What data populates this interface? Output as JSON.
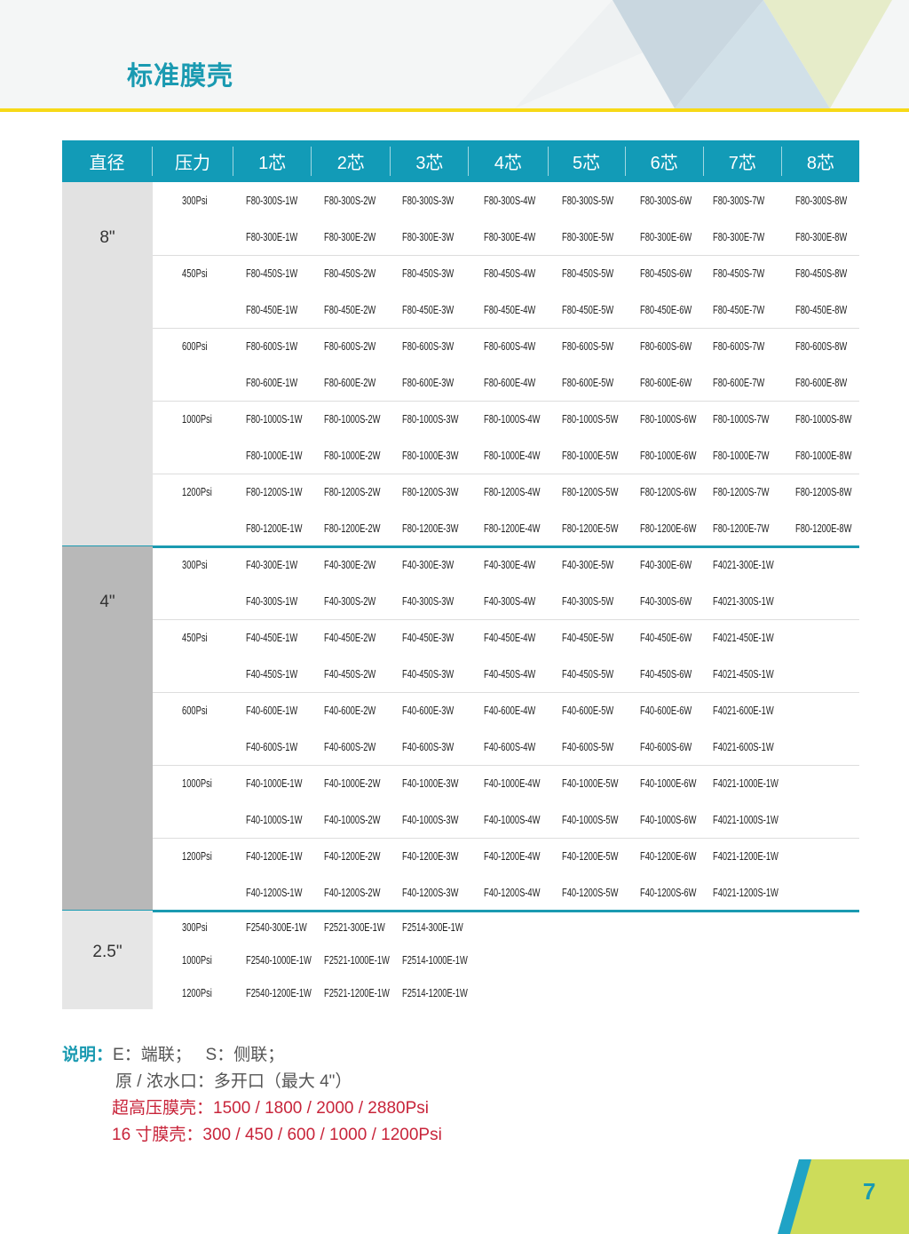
{
  "page_title": "标准膜壳",
  "colors": {
    "accent": "#129bb7",
    "yellow": "#f7d917",
    "red": "#c8243a",
    "lime": "#cddc5a"
  },
  "table": {
    "headers": [
      "直径",
      "压力",
      "1芯",
      "2芯",
      "3芯",
      "4芯",
      "5芯",
      "6芯",
      "7芯",
      "8芯"
    ],
    "blocks": [
      {
        "diameter": "8\"",
        "rows": [
          {
            "pressure": "300Psi",
            "cells": [
              "F80-300S-1W",
              "F80-300S-2W",
              "F80-300S-3W",
              "F80-300S-4W",
              "F80-300S-5W",
              "F80-300S-6W",
              "F80-300S-7W",
              "F80-300S-8W"
            ]
          },
          {
            "pressure": "",
            "cells": [
              "F80-300E-1W",
              "F80-300E-2W",
              "F80-300E-3W",
              "F80-300E-4W",
              "F80-300E-5W",
              "F80-300E-6W",
              "F80-300E-7W",
              "F80-300E-8W"
            ]
          },
          {
            "pressure": "450Psi",
            "cells": [
              "F80-450S-1W",
              "F80-450S-2W",
              "F80-450S-3W",
              "F80-450S-4W",
              "F80-450S-5W",
              "F80-450S-6W",
              "F80-450S-7W",
              "F80-450S-8W"
            ]
          },
          {
            "pressure": "",
            "cells": [
              "F80-450E-1W",
              "F80-450E-2W",
              "F80-450E-3W",
              "F80-450E-4W",
              "F80-450E-5W",
              "F80-450E-6W",
              "F80-450E-7W",
              "F80-450E-8W"
            ]
          },
          {
            "pressure": "600Psi",
            "cells": [
              "F80-600S-1W",
              "F80-600S-2W",
              "F80-600S-3W",
              "F80-600S-4W",
              "F80-600S-5W",
              "F80-600S-6W",
              "F80-600S-7W",
              "F80-600S-8W"
            ]
          },
          {
            "pressure": "",
            "cells": [
              "F80-600E-1W",
              "F80-600E-2W",
              "F80-600E-3W",
              "F80-600E-4W",
              "F80-600E-5W",
              "F80-600E-6W",
              "F80-600E-7W",
              "F80-600E-8W"
            ]
          },
          {
            "pressure": "1000Psi",
            "cells": [
              "F80-1000S-1W",
              "F80-1000S-2W",
              "F80-1000S-3W",
              "F80-1000S-4W",
              "F80-1000S-5W",
              "F80-1000S-6W",
              "F80-1000S-7W",
              "F80-1000S-8W"
            ]
          },
          {
            "pressure": "",
            "cells": [
              "F80-1000E-1W",
              "F80-1000E-2W",
              "F80-1000E-3W",
              "F80-1000E-4W",
              "F80-1000E-5W",
              "F80-1000E-6W",
              "F80-1000E-7W",
              "F80-1000E-8W"
            ]
          },
          {
            "pressure": "1200Psi",
            "cells": [
              "F80-1200S-1W",
              "F80-1200S-2W",
              "F80-1200S-3W",
              "F80-1200S-4W",
              "F80-1200S-5W",
              "F80-1200S-6W",
              "F80-1200S-7W",
              "F80-1200S-8W"
            ]
          },
          {
            "pressure": "",
            "cells": [
              "F80-1200E-1W",
              "F80-1200E-2W",
              "F80-1200E-3W",
              "F80-1200E-4W",
              "F80-1200E-5W",
              "F80-1200E-6W",
              "F80-1200E-7W",
              "F80-1200E-8W"
            ]
          }
        ]
      },
      {
        "diameter": "4\"",
        "rows": [
          {
            "pressure": "300Psi",
            "cells": [
              "F40-300E-1W",
              "F40-300E-2W",
              "F40-300E-3W",
              "F40-300E-4W",
              "F40-300E-5W",
              "F40-300E-6W",
              "F4021-300E-1W",
              ""
            ]
          },
          {
            "pressure": "",
            "cells": [
              "F40-300S-1W",
              "F40-300S-2W",
              "F40-300S-3W",
              "F40-300S-4W",
              "F40-300S-5W",
              "F40-300S-6W",
              "F4021-300S-1W",
              ""
            ]
          },
          {
            "pressure": "450Psi",
            "cells": [
              "F40-450E-1W",
              "F40-450E-2W",
              "F40-450E-3W",
              "F40-450E-4W",
              "F40-450E-5W",
              "F40-450E-6W",
              "F4021-450E-1W",
              ""
            ]
          },
          {
            "pressure": "",
            "cells": [
              "F40-450S-1W",
              "F40-450S-2W",
              "F40-450S-3W",
              "F40-450S-4W",
              "F40-450S-5W",
              "F40-450S-6W",
              "F4021-450S-1W",
              ""
            ]
          },
          {
            "pressure": "600Psi",
            "cells": [
              "F40-600E-1W",
              "F40-600E-2W",
              "F40-600E-3W",
              "F40-600E-4W",
              "F40-600E-5W",
              "F40-600E-6W",
              "F4021-600E-1W",
              ""
            ]
          },
          {
            "pressure": "",
            "cells": [
              "F40-600S-1W",
              "F40-600S-2W",
              "F40-600S-3W",
              "F40-600S-4W",
              "F40-600S-5W",
              "F40-600S-6W",
              "F4021-600S-1W",
              ""
            ]
          },
          {
            "pressure": "1000Psi",
            "cells": [
              "F40-1000E-1W",
              "F40-1000E-2W",
              "F40-1000E-3W",
              "F40-1000E-4W",
              "F40-1000E-5W",
              "F40-1000E-6W",
              "F4021-1000E-1W",
              ""
            ]
          },
          {
            "pressure": "",
            "cells": [
              "F40-1000S-1W",
              "F40-1000S-2W",
              "F40-1000S-3W",
              "F40-1000S-4W",
              "F40-1000S-5W",
              "F40-1000S-6W",
              "F4021-1000S-1W",
              ""
            ]
          },
          {
            "pressure": "1200Psi",
            "cells": [
              "F40-1200E-1W",
              "F40-1200E-2W",
              "F40-1200E-3W",
              "F40-1200E-4W",
              "F40-1200E-5W",
              "F40-1200E-6W",
              "F4021-1200E-1W",
              ""
            ]
          },
          {
            "pressure": "",
            "cells": [
              "F40-1200S-1W",
              "F40-1200S-2W",
              "F40-1200S-3W",
              "F40-1200S-4W",
              "F40-1200S-5W",
              "F40-1200S-6W",
              "F4021-1200S-1W",
              ""
            ]
          }
        ]
      },
      {
        "diameter": "2.5\"",
        "rows": [
          {
            "pressure": "300Psi",
            "cells": [
              "F2540-300E-1W",
              "F2521-300E-1W",
              "F2514-300E-1W",
              "",
              "",
              "",
              "",
              ""
            ]
          },
          {
            "pressure": "1000Psi",
            "cells": [
              "F2540-1000E-1W",
              "F2521-1000E-1W",
              "F2514-1000E-1W",
              "",
              "",
              "",
              "",
              ""
            ]
          },
          {
            "pressure": "1200Psi",
            "cells": [
              "F2540-1200E-1W",
              "F2521-1200E-1W",
              "F2514-1200E-1W",
              "",
              "",
              "",
              "",
              ""
            ]
          }
        ]
      }
    ]
  },
  "notes": {
    "label": "说明：",
    "line1": "E：端联；   S：侧联；",
    "line2": "原 / 浓水口：多开口（最大 4\"）",
    "line3": "超高压膜壳：1500 / 1800 / 2000 / 2880Psi",
    "line4": "16 寸膜壳：300 / 450 / 600 / 1000 / 1200Psi"
  },
  "page_number": "7"
}
